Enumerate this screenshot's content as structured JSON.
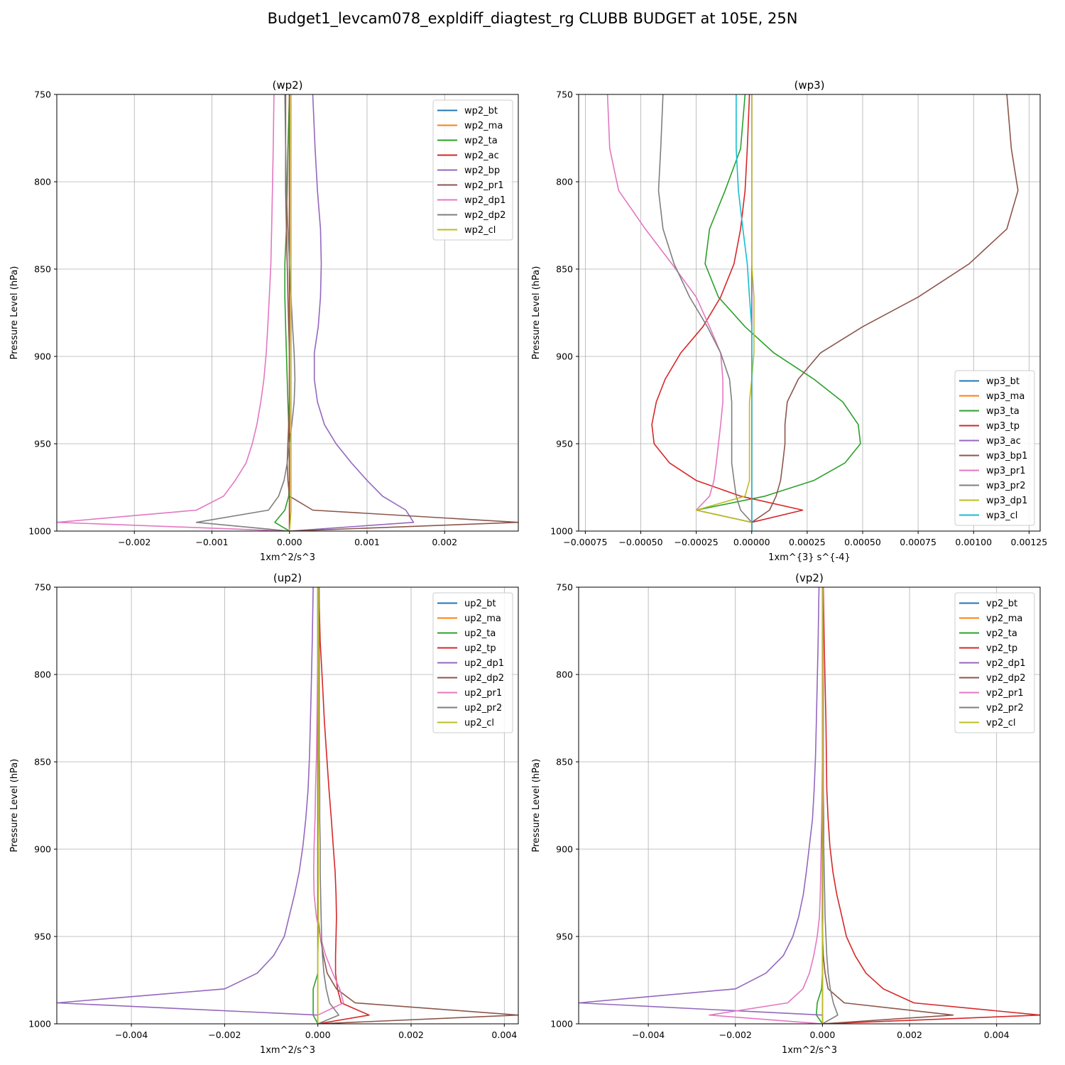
{
  "figure_title": "Budget1_levcam078_expldiff_diagtest_rg CLUBB BUDGET at 105E, 25N",
  "colors": {
    "grid": "#b0b0b0",
    "series_palette": [
      "#1f77b4",
      "#ff7f0e",
      "#2ca02c",
      "#d62728",
      "#9467bd",
      "#8c564b",
      "#e377c2",
      "#7f7f7f",
      "#bcbd22",
      "#17becf"
    ]
  },
  "levels": [
    750,
    781,
    805,
    827,
    847,
    866,
    883,
    898,
    913,
    926,
    939,
    950,
    961,
    971,
    980,
    988,
    995,
    1000
  ],
  "chart_data": [
    {
      "type": "line",
      "title": "(wp2)",
      "xlabel": "1xm^2/s^3",
      "ylabel": "Pressure Level (hPa)",
      "xlim": [
        -0.003,
        0.00295
      ],
      "ylim": [
        1000,
        750
      ],
      "xticks": [
        -0.002,
        -0.001,
        0.0,
        0.001,
        0.002
      ],
      "xtick_labels": [
        "−0.002",
        "−0.001",
        "0.000",
        "0.001",
        "0.002"
      ],
      "yticks": [
        750,
        800,
        850,
        900,
        950,
        1000
      ],
      "grid": true,
      "legend_loc": "upper right",
      "series": [
        {
          "name": "wp2_bt",
          "color": "#1f77b4",
          "values": [
            0,
            0,
            0,
            0,
            0,
            0,
            0,
            0,
            0,
            0,
            0,
            0,
            0,
            0,
            0,
            0,
            0,
            0
          ]
        },
        {
          "name": "wp2_ma",
          "color": "#ff7f0e",
          "values": [
            0,
            0,
            0,
            0,
            0,
            0,
            0,
            0,
            0,
            0,
            0,
            0,
            0,
            0,
            0,
            0,
            0,
            0
          ]
        },
        {
          "name": "wp2_ta",
          "color": "#2ca02c",
          "values": [
            0,
            -2e-05,
            -3e-05,
            -4e-05,
            -6e-05,
            -6e-05,
            -5e-05,
            -4e-05,
            -3e-05,
            -2e-05,
            -1e-05,
            0,
            0,
            0,
            -1e-05,
            -6e-05,
            -0.00019,
            0
          ]
        },
        {
          "name": "wp2_ac",
          "color": "#d62728",
          "values": [
            0,
            0,
            0,
            0,
            0,
            0,
            0,
            0,
            0,
            0,
            0,
            0,
            0,
            0,
            0,
            0,
            0,
            0
          ]
        },
        {
          "name": "wp2_bp",
          "color": "#9467bd",
          "values": [
            0.0003,
            0.00033,
            0.00036,
            0.0004,
            0.00041,
            0.0004,
            0.00037,
            0.00032,
            0.00032,
            0.00036,
            0.00045,
            0.0006,
            0.0008,
            0.001,
            0.0012,
            0.0015,
            0.0016,
            0
          ]
        },
        {
          "name": "wp2_pr1",
          "color": "#8c564b",
          "values": [
            -5e-05,
            -5e-05,
            -5e-05,
            -4e-05,
            -3e-05,
            -2e-05,
            -1e-05,
            0,
            0,
            0,
            -1e-05,
            -2e-05,
            -3e-05,
            -2e-05,
            0,
            0.0003,
            0.00295,
            0
          ]
        },
        {
          "name": "wp2_dp1",
          "color": "#e377c2",
          "values": [
            -0.0002,
            -0.00021,
            -0.00022,
            -0.00023,
            -0.00024,
            -0.00026,
            -0.00028,
            -0.0003,
            -0.00033,
            -0.00037,
            -0.00042,
            -0.00048,
            -0.00056,
            -0.0007,
            -0.00085,
            -0.0012,
            -0.003,
            0
          ]
        },
        {
          "name": "wp2_dp2",
          "color": "#7f7f7f",
          "values": [
            -6e-05,
            -5e-05,
            -4e-05,
            -2e-05,
            0,
            2e-05,
            4e-05,
            6e-05,
            7e-05,
            6e-05,
            3e-05,
            0,
            -3e-05,
            -7e-05,
            -0.00014,
            -0.00027,
            -0.0012,
            0
          ]
        },
        {
          "name": "wp2_cl",
          "color": "#bcbd22",
          "values": [
            2e-05,
            2e-05,
            2e-05,
            2e-05,
            2e-05,
            2e-05,
            2e-05,
            2e-05,
            2e-05,
            2e-05,
            2e-05,
            2e-05,
            2e-05,
            2e-05,
            2e-05,
            2e-05,
            1e-05,
            0
          ]
        }
      ]
    },
    {
      "type": "line",
      "title": "(wp3)",
      "xlabel": "1xm^{3} s^{-4}",
      "ylabel": "Pressure Level (hPa)",
      "xlim": [
        -0.00078,
        0.0013
      ],
      "ylim": [
        1000,
        750
      ],
      "xticks": [
        -0.00075,
        -0.0005,
        -0.00025,
        0.0,
        0.00025,
        0.0005,
        0.00075,
        0.001,
        0.00125
      ],
      "xtick_labels": [
        "−0.00075",
        "−0.00050",
        "−0.00025",
        "0.00000",
        "0.00025",
        "0.00050",
        "0.00075",
        "0.00100",
        "0.00125"
      ],
      "yticks": [
        750,
        800,
        850,
        900,
        950,
        1000
      ],
      "grid": true,
      "legend_loc": "lower right",
      "series": [
        {
          "name": "wp3_bt",
          "color": "#1f77b4",
          "values": [
            0,
            0,
            0,
            0,
            0,
            0,
            0,
            0,
            0,
            0,
            0,
            0,
            0,
            0,
            0,
            0,
            0,
            0
          ]
        },
        {
          "name": "wp3_ma",
          "color": "#ff7f0e",
          "values": [
            0,
            0,
            0,
            0,
            0,
            0,
            0,
            0,
            0,
            0,
            0,
            0,
            0,
            0,
            0,
            0,
            0,
            0
          ]
        },
        {
          "name": "wp3_ta",
          "color": "#2ca02c",
          "values": [
            -3e-05,
            -5e-05,
            -0.00012,
            -0.00019,
            -0.00021,
            -0.00015,
            -3e-05,
            0.0001,
            0.00028,
            0.00041,
            0.00048,
            0.00049,
            0.00042,
            0.00028,
            6e-05,
            -0.00025,
            0,
            0
          ]
        },
        {
          "name": "wp3_tp",
          "color": "#d62728",
          "values": [
            -1e-05,
            -2e-05,
            -3e-05,
            -5e-05,
            -8e-05,
            -0.00014,
            -0.00022,
            -0.00032,
            -0.00039,
            -0.00043,
            -0.00045,
            -0.00044,
            -0.00037,
            -0.00025,
            -5e-05,
            0.00023,
            0,
            0
          ]
        },
        {
          "name": "wp3_ac",
          "color": "#9467bd",
          "values": [
            0,
            0,
            0,
            0,
            0,
            0,
            0,
            0,
            0,
            0,
            0,
            0,
            0,
            0,
            0,
            0,
            0,
            0
          ]
        },
        {
          "name": "wp3_bp1",
          "color": "#8c564b",
          "values": [
            0.00115,
            0.00117,
            0.0012,
            0.00115,
            0.00098,
            0.00075,
            0.0005,
            0.00031,
            0.00021,
            0.00016,
            0.00015,
            0.00015,
            0.00014,
            0.00013,
            0.00011,
            8e-05,
            0,
            0
          ]
        },
        {
          "name": "wp3_pr1",
          "color": "#e377c2",
          "values": [
            -0.00065,
            -0.00064,
            -0.0006,
            -0.00048,
            -0.00036,
            -0.00025,
            -0.00019,
            -0.00014,
            -0.00013,
            -0.00013,
            -0.00014,
            -0.00015,
            -0.00016,
            -0.00017,
            -0.00019,
            -0.00025,
            0,
            0
          ]
        },
        {
          "name": "wp3_pr2",
          "color": "#7f7f7f",
          "values": [
            -0.0004,
            -0.00041,
            -0.00042,
            -0.0004,
            -0.00035,
            -0.00028,
            -0.0002,
            -0.00014,
            -0.0001,
            -9e-05,
            -9e-05,
            -9e-05,
            -9e-05,
            -8e-05,
            -7e-05,
            -5e-05,
            0,
            0
          ]
        },
        {
          "name": "wp3_dp1",
          "color": "#bcbd22",
          "values": [
            0,
            0,
            0,
            0,
            0,
            1e-05,
            1e-05,
            1e-05,
            0,
            -1e-05,
            -1e-05,
            -1e-05,
            -1e-05,
            -1e-05,
            -3e-05,
            -0.00025,
            0,
            0
          ]
        },
        {
          "name": "wp3_cl",
          "color": "#17becf",
          "values": [
            -7e-05,
            -7e-05,
            -6e-05,
            -4e-05,
            -2e-05,
            -1e-05,
            0,
            0,
            0,
            0,
            0,
            0,
            0,
            0,
            0,
            0,
            0,
            0
          ]
        }
      ]
    },
    {
      "type": "line",
      "title": "(up2)",
      "xlabel": "1xm^2/s^3",
      "ylabel": "Pressure Level (hPa)",
      "xlim": [
        -0.0056,
        0.0043
      ],
      "ylim": [
        1000,
        750
      ],
      "xticks": [
        -0.004,
        -0.002,
        0.0,
        0.002,
        0.004
      ],
      "xtick_labels": [
        "−0.004",
        "−0.002",
        "0.000",
        "0.002",
        "0.004"
      ],
      "yticks": [
        750,
        800,
        850,
        900,
        950,
        1000
      ],
      "grid": true,
      "legend_loc": "upper right",
      "series": [
        {
          "name": "up2_bt",
          "color": "#1f77b4",
          "values": [
            0,
            0,
            0,
            0,
            0,
            0,
            0,
            0,
            0,
            0,
            0,
            0,
            0,
            0,
            0,
            0,
            0,
            0
          ]
        },
        {
          "name": "up2_ma",
          "color": "#ff7f0e",
          "values": [
            0,
            0,
            0,
            0,
            0,
            0,
            0,
            0,
            0,
            0,
            0,
            0,
            0,
            0,
            0,
            0,
            0,
            0
          ]
        },
        {
          "name": "up2_ta",
          "color": "#2ca02c",
          "values": [
            0,
            0,
            0,
            0,
            0,
            0,
            0,
            0,
            0,
            0,
            0,
            0,
            0,
            0,
            -0.0001,
            -0.0001,
            -0.0001,
            0
          ]
        },
        {
          "name": "up2_tp",
          "color": "#d62728",
          "values": [
            2e-05,
            5e-05,
            0.0001,
            0.00014,
            0.00019,
            0.00024,
            0.00029,
            0.00033,
            0.00037,
            0.00039,
            0.0004,
            0.00039,
            0.00038,
            0.00038,
            0.00042,
            0.0005,
            0.0011,
            0
          ]
        },
        {
          "name": "up2_dp1",
          "color": "#9467bd",
          "values": [
            -0.0001,
            -0.00012,
            -0.00014,
            -0.00016,
            -0.00018,
            -0.00021,
            -0.00026,
            -0.00032,
            -0.0004,
            -0.0005,
            -0.00062,
            -0.00072,
            -0.00095,
            -0.0013,
            -0.002,
            -0.0056,
            0,
            0
          ]
        },
        {
          "name": "up2_dp2",
          "color": "#8c564b",
          "values": [
            0,
            0,
            0,
            0,
            0,
            0,
            0,
            0,
            0,
            0,
            0,
            5e-05,
            0.00012,
            0.0002,
            0.0004,
            0.0008,
            0.0043,
            0
          ]
        },
        {
          "name": "up2_pr1",
          "color": "#e377c2",
          "values": [
            0,
            0,
            -1e-05,
            -2e-05,
            -3e-05,
            -5e-05,
            -6e-05,
            -8e-05,
            -9e-05,
            -8e-05,
            -3e-05,
            5e-05,
            0.00017,
            0.00032,
            0.00047,
            0.00055,
            0,
            0
          ]
        },
        {
          "name": "up2_pr2",
          "color": "#7f7f7f",
          "values": [
            3e-05,
            3e-05,
            3e-05,
            3e-05,
            3e-05,
            4e-05,
            4e-05,
            5e-05,
            5e-05,
            6e-05,
            7e-05,
            8e-05,
            0.0001,
            0.00013,
            0.00018,
            0.00025,
            0.00045,
            0
          ]
        },
        {
          "name": "up2_cl",
          "color": "#bcbd22",
          "values": [
            1e-05,
            1e-05,
            1e-05,
            1e-05,
            1e-05,
            1e-05,
            1e-05,
            1e-05,
            1e-05,
            1e-05,
            1e-05,
            1e-05,
            0,
            0,
            0,
            0,
            0,
            0
          ]
        }
      ]
    },
    {
      "type": "line",
      "title": "(vp2)",
      "xlabel": "1xm^2/s^3",
      "ylabel": "Pressure Level (hPa)",
      "xlim": [
        -0.0056,
        0.005
      ],
      "ylim": [
        1000,
        750
      ],
      "xticks": [
        -0.004,
        -0.002,
        0.0,
        0.002,
        0.004
      ],
      "xtick_labels": [
        "−0.004",
        "−0.002",
        "0.000",
        "0.002",
        "0.004"
      ],
      "yticks": [
        750,
        800,
        850,
        900,
        950,
        1000
      ],
      "grid": true,
      "legend_loc": "upper right",
      "series": [
        {
          "name": "vp2_bt",
          "color": "#1f77b4",
          "values": [
            0,
            0,
            0,
            0,
            0,
            0,
            0,
            0,
            0,
            0,
            0,
            0,
            0,
            0,
            0,
            0,
            0,
            0
          ]
        },
        {
          "name": "vp2_ma",
          "color": "#ff7f0e",
          "values": [
            0,
            0,
            0,
            0,
            0,
            0,
            0,
            0,
            0,
            0,
            0,
            0,
            0,
            0,
            0,
            0,
            0,
            0
          ]
        },
        {
          "name": "vp2_ta",
          "color": "#2ca02c",
          "values": [
            0,
            0,
            0,
            0,
            0,
            0,
            0,
            0,
            0,
            0,
            0,
            0,
            0,
            0,
            -2e-05,
            -0.00012,
            -0.00014,
            0
          ]
        },
        {
          "name": "vp2_tp",
          "color": "#d62728",
          "values": [
            2e-05,
            4e-05,
            6e-05,
            8e-05,
            9e-05,
            0.0001,
            0.00013,
            0.00017,
            0.00024,
            0.00033,
            0.00045,
            0.00055,
            0.00075,
            0.001,
            0.0014,
            0.0021,
            0.005,
            0
          ]
        },
        {
          "name": "vp2_dp1",
          "color": "#9467bd",
          "values": [
            -8e-05,
            -0.0001,
            -0.00012,
            -0.00014,
            -0.00016,
            -0.00019,
            -0.00023,
            -0.0003,
            -0.00037,
            -0.00044,
            -0.00055,
            -0.00068,
            -0.0009,
            -0.0013,
            -0.002,
            -0.0056,
            0,
            0
          ]
        },
        {
          "name": "vp2_dp2",
          "color": "#8c564b",
          "values": [
            0,
            0,
            0,
            0,
            0,
            0,
            0,
            0,
            0,
            0,
            0,
            0,
            2e-05,
            6e-05,
            0.00013,
            0.0005,
            0.003,
            0
          ]
        },
        {
          "name": "vp2_pr1",
          "color": "#e377c2",
          "values": [
            0,
            0,
            0,
            0,
            0,
            -1e-05,
            -2e-05,
            -3e-05,
            -4e-05,
            -5e-05,
            -7e-05,
            -0.00012,
            -0.0002,
            -0.0003,
            -0.00045,
            -0.0008,
            -0.0026,
            0
          ]
        },
        {
          "name": "vp2_pr2",
          "color": "#7f7f7f",
          "values": [
            1e-05,
            1e-05,
            2e-05,
            2e-05,
            2e-05,
            2e-05,
            3e-05,
            3e-05,
            4e-05,
            5e-05,
            6e-05,
            8e-05,
            0.0001,
            0.00013,
            0.00018,
            0.00025,
            0.00035,
            0
          ]
        },
        {
          "name": "vp2_cl",
          "color": "#bcbd22",
          "values": [
            1e-05,
            1e-05,
            1e-05,
            1e-05,
            1e-05,
            1e-05,
            1e-05,
            1e-05,
            1e-05,
            1e-05,
            1e-05,
            0,
            0,
            0,
            0,
            0,
            0,
            0
          ]
        }
      ]
    }
  ]
}
